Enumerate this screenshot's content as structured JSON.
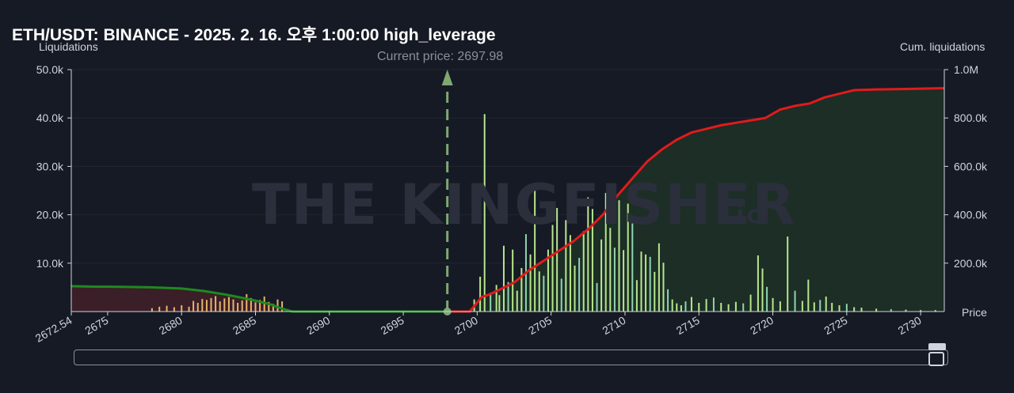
{
  "title": "ETH/USDT: BINANCE - 2025. 2. 16. 오후 1:00:00 high_leverage",
  "watermark": {
    "brand": "THE KINGFISHER",
    "suffix": ".io"
  },
  "chart_data": {
    "type": "bar",
    "ylabel_left": "Liquidations",
    "ylabel_right": "Cum. liquidations",
    "xlabel": "Price",
    "annotation": "Current price: 2697.98",
    "current_price": 2697.98,
    "xlim": [
      2672.54,
      2731.6
    ],
    "ylim_left": [
      0,
      50000
    ],
    "ylim_right": [
      0,
      1000000
    ],
    "x_ticks": [
      "2672.54",
      "2675",
      "2680",
      "2685",
      "2690",
      "2695",
      "2700",
      "2705",
      "2710",
      "2715",
      "2720",
      "2725",
      "2730"
    ],
    "x_tick_values": [
      2672.54,
      2675,
      2680,
      2685,
      2690,
      2695,
      2700,
      2705,
      2710,
      2715,
      2720,
      2725,
      2730
    ],
    "y_left_ticks": [
      "10.0k",
      "20.0k",
      "30.0k",
      "40.0k",
      "50.0k"
    ],
    "y_left_tick_values": [
      10000,
      20000,
      30000,
      40000,
      50000
    ],
    "y_right_ticks": [
      "200.0k",
      "400.0k",
      "600.0k",
      "800.0k",
      "1.0M"
    ],
    "y_right_tick_values": [
      200000,
      400000,
      600000,
      800000,
      1000000
    ],
    "colors": {
      "long_bar": "#e8b46a",
      "short_bar": "#b8e68e",
      "short_bar_alt": "#8fd4b0",
      "cum_long": "#1e8a1e",
      "cum_short": "#e01b1b",
      "price_line": "#7fa872",
      "long_area": "#3a1e28",
      "short_area": "#1c2e26"
    },
    "long_bars": {
      "x": [
        2678.0,
        2678.5,
        2679.0,
        2679.5,
        2680.0,
        2680.5,
        2680.8,
        2681.1,
        2681.4,
        2681.7,
        2682.0,
        2682.3,
        2682.6,
        2682.9,
        2683.2,
        2683.5,
        2683.8,
        2684.1,
        2684.4,
        2684.7,
        2685.0,
        2685.3,
        2685.6,
        2685.9,
        2686.2,
        2686.5,
        2686.8
      ],
      "values": [
        700,
        1000,
        1200,
        900,
        1300,
        1000,
        2200,
        1800,
        2600,
        2400,
        2800,
        3200,
        2100,
        2700,
        3000,
        2500,
        1800,
        2300,
        3600,
        2800,
        1900,
        2400,
        3100,
        2000,
        1600,
        2500,
        2100
      ]
    },
    "short_bars": {
      "x": [
        2699.8,
        2700.2,
        2700.5,
        2700.9,
        2701.3,
        2701.5,
        2701.8,
        2702.1,
        2702.4,
        2702.7,
        2703.0,
        2703.3,
        2703.6,
        2703.9,
        2704.2,
        2704.5,
        2704.8,
        2705.1,
        2705.4,
        2705.7,
        2706.0,
        2706.3,
        2706.6,
        2706.9,
        2707.2,
        2707.5,
        2707.8,
        2708.1,
        2708.4,
        2708.7,
        2709.0,
        2709.3,
        2709.6,
        2709.9,
        2710.2,
        2710.5,
        2710.8,
        2711.1,
        2711.4,
        2711.7,
        2712.0,
        2712.3,
        2712.6,
        2712.9,
        2713.2,
        2713.5,
        2713.8,
        2714.1,
        2714.5,
        2715.0,
        2715.5,
        2716.0,
        2716.5,
        2717.0,
        2717.5,
        2718.0,
        2718.5,
        2719.0,
        2719.3,
        2719.6,
        2720.0,
        2720.5,
        2721.0,
        2721.5,
        2722.0,
        2722.4,
        2722.8,
        2723.2,
        2723.6,
        2724.0,
        2724.5,
        2725.0,
        2725.5,
        2726.0,
        2727.0,
        2728.0,
        2729.0,
        2730.0,
        2731.0
      ],
      "values": [
        2500,
        7200,
        40800,
        3900,
        5500,
        3400,
        13600,
        6100,
        12800,
        4300,
        9000,
        16000,
        11800,
        25500,
        8300,
        7400,
        12800,
        17900,
        21400,
        6800,
        18900,
        15800,
        9500,
        11100,
        16600,
        23600,
        21200,
        5900,
        14900,
        24500,
        17300,
        13200,
        23000,
        12700,
        22300,
        18200,
        6500,
        12400,
        11800,
        11300,
        8200,
        14100,
        10100,
        4600,
        2500,
        1700,
        1300,
        2100,
        3000,
        1800,
        2600,
        2900,
        1800,
        1500,
        2000,
        1700,
        3500,
        11600,
        8900,
        5100,
        2800,
        2100,
        15500,
        4300,
        2200,
        6600,
        1900,
        2400,
        3100,
        1800,
        1300,
        1600,
        900,
        800,
        600,
        500,
        400,
        300,
        300
      ]
    },
    "cum_long": {
      "x": [
        2672.54,
        2674,
        2676,
        2678,
        2680,
        2681.5,
        2683,
        2684,
        2685,
        2686,
        2686.8,
        2687.5,
        2690,
        2695,
        2697.98
      ],
      "values": [
        105000,
        103000,
        102000,
        100000,
        95000,
        85000,
        70000,
        58000,
        45000,
        30000,
        12000,
        0,
        0,
        0,
        0
      ]
    },
    "cum_short": {
      "x": [
        2697.98,
        2699.5,
        2700.3,
        2700.8,
        2701.5,
        2702.5,
        2703.5,
        2704.5,
        2705.5,
        2706.5,
        2707.5,
        2708.5,
        2709.5,
        2710.5,
        2711.5,
        2712.5,
        2713.5,
        2714.5,
        2715.5,
        2716.5,
        2717.5,
        2718.5,
        2719.5,
        2720.5,
        2721.5,
        2722.5,
        2723.5,
        2724.5,
        2725.5,
        2727,
        2729,
        2731.6
      ],
      "values": [
        0,
        0,
        60000,
        70000,
        90000,
        120000,
        170000,
        210000,
        250000,
        290000,
        340000,
        400000,
        480000,
        550000,
        620000,
        670000,
        710000,
        740000,
        755000,
        770000,
        780000,
        790000,
        800000,
        835000,
        850000,
        860000,
        885000,
        900000,
        915000,
        918000,
        920000,
        923000
      ]
    }
  }
}
